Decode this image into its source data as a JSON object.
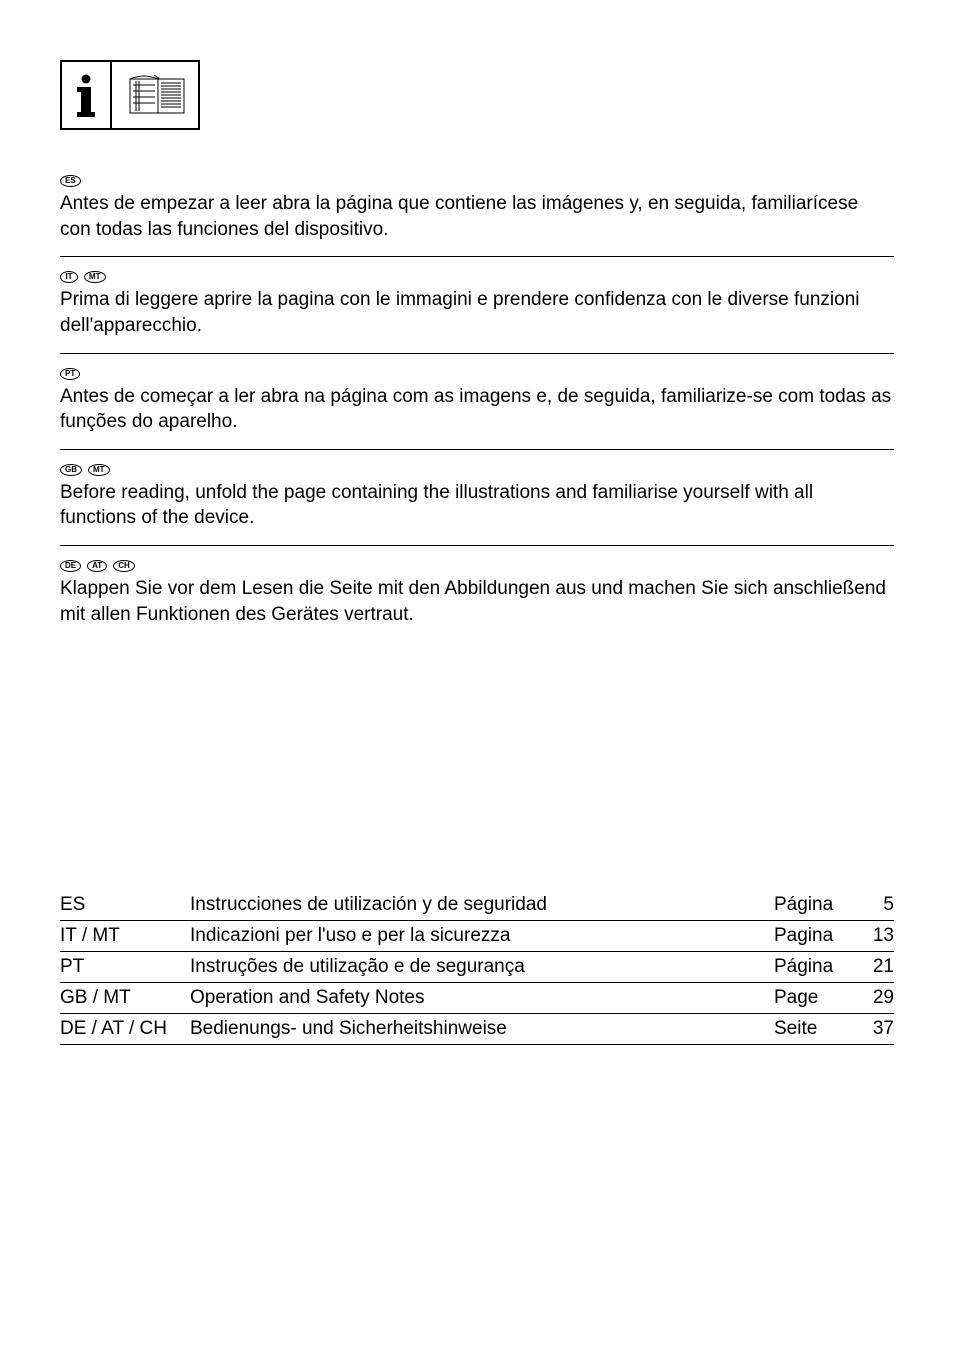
{
  "blocks": [
    {
      "tags": [
        "ES"
      ],
      "text": "Antes de empezar a leer abra la página que contiene las imágenes y, en seguida, familiarícese con todas las funciones del dispositivo."
    },
    {
      "tags": [
        "IT",
        "MT"
      ],
      "text": "Prima di leggere aprire la pagina con le immagini e prendere confidenza con le diverse funzioni dell'apparecchio."
    },
    {
      "tags": [
        "PT"
      ],
      "text": "Antes de começar a ler abra na página com as imagens e, de seguida, familiarize-se com todas as funções do aparelho."
    },
    {
      "tags": [
        "GB",
        "MT"
      ],
      "text": "Before reading, unfold the page containing the illustrations and familiarise yourself with all functions of the device."
    },
    {
      "tags": [
        "DE",
        "AT",
        "CH"
      ],
      "text": "Klappen Sie vor dem Lesen die Seite mit den Abbildungen aus und machen Sie sich anschließend mit allen Funktionen des Gerätes vertraut."
    }
  ],
  "toc": [
    {
      "code": "ES",
      "title": "Instrucciones de utilización y de seguridad",
      "pageword": "Página",
      "num": "5"
    },
    {
      "code": "IT / MT",
      "title": "Indicazioni per l'uso e per la sicurezza",
      "pageword": "Pagina",
      "num": "13"
    },
    {
      "code": "PT",
      "title": "Instruções de utilização e de segurança",
      "pageword": "Página",
      "num": "21"
    },
    {
      "code": "GB / MT",
      "title": "Operation and Safety Notes",
      "pageword": "Page",
      "num": "29"
    },
    {
      "code": "DE / AT / CH",
      "title": "Bedienungs- und Sicherheitshinweise",
      "pageword": "Seite",
      "num": "37"
    }
  ],
  "colors": {
    "text": "#000000",
    "background": "#ffffff",
    "border": "#000000"
  },
  "typography": {
    "body_fontsize_pt": 14,
    "tag_fontsize_pt": 6,
    "font_family": "Helvetica Neue",
    "weight": 300
  }
}
